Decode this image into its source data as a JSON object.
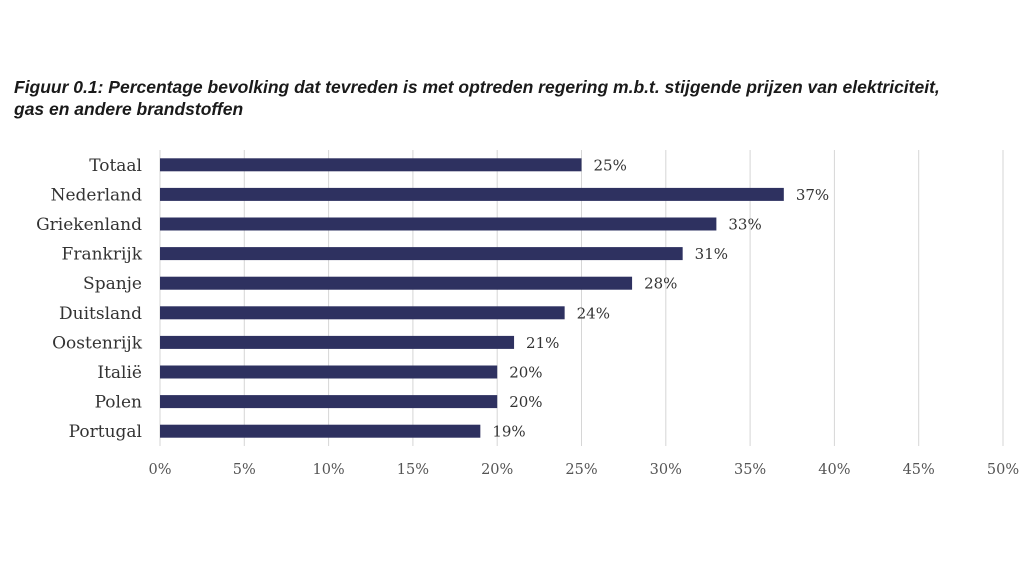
{
  "chart_data": {
    "type": "bar",
    "orientation": "horizontal",
    "title": "Figuur 0.1: Percentage bevolking dat tevreden is met optreden regering m.b.t. stijgende prijzen van elektriciteit, gas en andere brandstoffen",
    "categories": [
      "Totaal",
      "Nederland",
      "Griekenland",
      "Frankrijk",
      "Spanje",
      "Duitsland",
      "Oostenrijk",
      "Italië",
      "Polen",
      "Portugal"
    ],
    "values": [
      25,
      37,
      33,
      31,
      28,
      24,
      21,
      20,
      20,
      19
    ],
    "value_labels": [
      "25%",
      "37%",
      "33%",
      "31%",
      "28%",
      "24%",
      "21%",
      "20%",
      "20%",
      "19%"
    ],
    "xlim": [
      0,
      50
    ],
    "xticks": [
      0,
      5,
      10,
      15,
      20,
      25,
      30,
      35,
      40,
      45,
      50
    ],
    "xtick_labels": [
      "0%",
      "5%",
      "10%",
      "15%",
      "20%",
      "25%",
      "30%",
      "35%",
      "40%",
      "45%",
      "50%"
    ],
    "xlabel": "",
    "ylabel": "",
    "grid": true,
    "legend": "none",
    "bar_color": "#2e3160"
  }
}
